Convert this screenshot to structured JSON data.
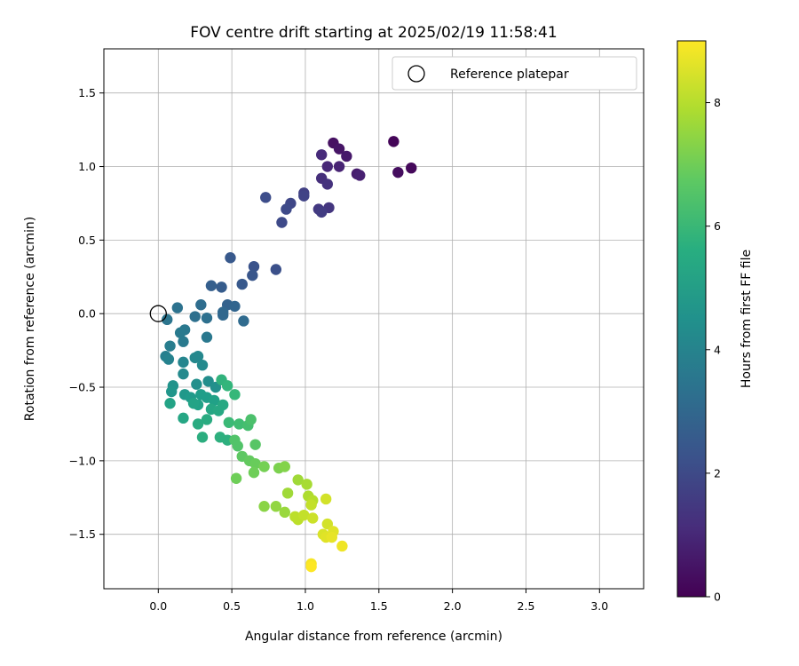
{
  "chart_data": {
    "type": "scatter",
    "title": "FOV centre drift starting at 2025/02/19 11:58:41",
    "xlabel": "Angular distance from reference (arcmin)",
    "ylabel": "Rotation from reference (arcmin)",
    "xlim": [
      -0.37,
      3.3
    ],
    "ylim": [
      -1.87,
      1.8
    ],
    "xticks": [
      0.0,
      0.5,
      1.0,
      1.5,
      2.0,
      2.5,
      3.0
    ],
    "xtick_labels": [
      "0.0",
      "0.5",
      "1.0",
      "1.5",
      "2.0",
      "2.5",
      "3.0"
    ],
    "yticks": [
      -1.5,
      -1.0,
      -0.5,
      0.0,
      0.5,
      1.0,
      1.5
    ],
    "ytick_labels": [
      "−1.5",
      "−1.0",
      "−0.5",
      "0.0",
      "0.5",
      "1.0",
      "1.5"
    ],
    "grid": true,
    "colormap": "viridis",
    "colorbar": {
      "label": "Hours from first FF file",
      "range": [
        0,
        9
      ],
      "ticks": [
        0,
        2,
        4,
        6,
        8
      ],
      "tick_labels": [
        "0",
        "2",
        "4",
        "6",
        "8"
      ]
    },
    "legend": {
      "position": "top-right",
      "entries": [
        {
          "label": "Reference platepar",
          "marker": "hollow-circle"
        }
      ]
    },
    "reference_point": {
      "x": 0.0,
      "y": 0.0
    },
    "points": [
      {
        "x": 1.6,
        "y": 1.17,
        "c": 0.1
      },
      {
        "x": 1.72,
        "y": 0.99,
        "c": 0.2
      },
      {
        "x": 1.63,
        "y": 0.96,
        "c": 0.3
      },
      {
        "x": 1.19,
        "y": 1.16,
        "c": 0.4
      },
      {
        "x": 1.23,
        "y": 1.12,
        "c": 0.5
      },
      {
        "x": 1.28,
        "y": 1.07,
        "c": 0.6
      },
      {
        "x": 1.35,
        "y": 0.95,
        "c": 0.7
      },
      {
        "x": 1.37,
        "y": 0.94,
        "c": 0.8
      },
      {
        "x": 1.23,
        "y": 1.0,
        "c": 0.9
      },
      {
        "x": 1.15,
        "y": 1.0,
        "c": 1.0
      },
      {
        "x": 1.11,
        "y": 1.08,
        "c": 1.1
      },
      {
        "x": 1.11,
        "y": 0.92,
        "c": 1.2
      },
      {
        "x": 1.15,
        "y": 0.88,
        "c": 1.3
      },
      {
        "x": 1.16,
        "y": 0.72,
        "c": 1.4
      },
      {
        "x": 1.09,
        "y": 0.71,
        "c": 1.5
      },
      {
        "x": 1.11,
        "y": 0.69,
        "c": 1.6
      },
      {
        "x": 0.99,
        "y": 0.82,
        "c": 1.7
      },
      {
        "x": 0.99,
        "y": 0.8,
        "c": 1.8
      },
      {
        "x": 0.9,
        "y": 0.75,
        "c": 1.9
      },
      {
        "x": 0.87,
        "y": 0.71,
        "c": 2.0
      },
      {
        "x": 0.84,
        "y": 0.62,
        "c": 2.0
      },
      {
        "x": 0.73,
        "y": 0.79,
        "c": 2.1
      },
      {
        "x": 0.8,
        "y": 0.3,
        "c": 2.2
      },
      {
        "x": 0.65,
        "y": 0.32,
        "c": 2.3
      },
      {
        "x": 0.64,
        "y": 0.26,
        "c": 2.4
      },
      {
        "x": 0.57,
        "y": 0.2,
        "c": 2.5
      },
      {
        "x": 0.49,
        "y": 0.38,
        "c": 2.5
      },
      {
        "x": 0.43,
        "y": 0.18,
        "c": 2.6
      },
      {
        "x": 0.36,
        "y": 0.19,
        "c": 2.7
      },
      {
        "x": 0.47,
        "y": 0.06,
        "c": 2.8
      },
      {
        "x": 0.52,
        "y": 0.05,
        "c": 2.9
      },
      {
        "x": 0.44,
        "y": 0.01,
        "c": 3.0
      },
      {
        "x": 0.44,
        "y": -0.01,
        "c": 3.0
      },
      {
        "x": 0.58,
        "y": -0.05,
        "c": 3.1
      },
      {
        "x": 0.29,
        "y": 0.06,
        "c": 3.2
      },
      {
        "x": 0.33,
        "y": -0.03,
        "c": 3.3
      },
      {
        "x": 0.25,
        "y": -0.02,
        "c": 3.3
      },
      {
        "x": 0.13,
        "y": 0.04,
        "c": 3.4
      },
      {
        "x": 0.06,
        "y": -0.04,
        "c": 3.5
      },
      {
        "x": 0.33,
        "y": -0.16,
        "c": 3.6
      },
      {
        "x": 0.18,
        "y": -0.11,
        "c": 3.6
      },
      {
        "x": 0.15,
        "y": -0.13,
        "c": 3.7
      },
      {
        "x": 0.17,
        "y": -0.19,
        "c": 3.7
      },
      {
        "x": 0.08,
        "y": -0.22,
        "c": 3.8
      },
      {
        "x": 0.05,
        "y": -0.29,
        "c": 3.9
      },
      {
        "x": 0.07,
        "y": -0.31,
        "c": 4.0
      },
      {
        "x": 0.17,
        "y": -0.33,
        "c": 4.1
      },
      {
        "x": 0.25,
        "y": -0.3,
        "c": 4.2
      },
      {
        "x": 0.27,
        "y": -0.29,
        "c": 4.2
      },
      {
        "x": 0.3,
        "y": -0.35,
        "c": 4.3
      },
      {
        "x": 0.17,
        "y": -0.41,
        "c": 4.3
      },
      {
        "x": 0.34,
        "y": -0.46,
        "c": 4.4
      },
      {
        "x": 0.26,
        "y": -0.48,
        "c": 4.5
      },
      {
        "x": 0.39,
        "y": -0.5,
        "c": 4.5
      },
      {
        "x": 0.1,
        "y": -0.49,
        "c": 4.6
      },
      {
        "x": 0.09,
        "y": -0.53,
        "c": 4.7
      },
      {
        "x": 0.18,
        "y": -0.55,
        "c": 4.8
      },
      {
        "x": 0.22,
        "y": -0.57,
        "c": 4.9
      },
      {
        "x": 0.29,
        "y": -0.55,
        "c": 5.0
      },
      {
        "x": 0.33,
        "y": -0.57,
        "c": 5.0
      },
      {
        "x": 0.38,
        "y": -0.59,
        "c": 5.1
      },
      {
        "x": 0.27,
        "y": -0.62,
        "c": 5.1
      },
      {
        "x": 0.08,
        "y": -0.61,
        "c": 5.2
      },
      {
        "x": 0.24,
        "y": -0.61,
        "c": 5.2
      },
      {
        "x": 0.17,
        "y": -0.71,
        "c": 5.3
      },
      {
        "x": 0.36,
        "y": -0.65,
        "c": 5.3
      },
      {
        "x": 0.41,
        "y": -0.66,
        "c": 5.4
      },
      {
        "x": 0.44,
        "y": -0.62,
        "c": 5.4
      },
      {
        "x": 0.33,
        "y": -0.72,
        "c": 5.5
      },
      {
        "x": 0.27,
        "y": -0.75,
        "c": 5.5
      },
      {
        "x": 0.3,
        "y": -0.84,
        "c": 5.6
      },
      {
        "x": 0.42,
        "y": -0.84,
        "c": 5.7
      },
      {
        "x": 0.47,
        "y": -0.86,
        "c": 5.7
      },
      {
        "x": 0.43,
        "y": -0.45,
        "c": 5.8
      },
      {
        "x": 0.47,
        "y": -0.49,
        "c": 5.9
      },
      {
        "x": 0.52,
        "y": -0.55,
        "c": 6.0
      },
      {
        "x": 0.48,
        "y": -0.74,
        "c": 6.1
      },
      {
        "x": 0.55,
        "y": -0.75,
        "c": 6.2
      },
      {
        "x": 0.61,
        "y": -0.76,
        "c": 6.3
      },
      {
        "x": 0.63,
        "y": -0.72,
        "c": 6.4
      },
      {
        "x": 0.52,
        "y": -0.86,
        "c": 6.5
      },
      {
        "x": 0.54,
        "y": -0.9,
        "c": 6.5
      },
      {
        "x": 0.66,
        "y": -0.89,
        "c": 6.6
      },
      {
        "x": 0.57,
        "y": -0.97,
        "c": 6.7
      },
      {
        "x": 0.62,
        "y": -1.0,
        "c": 6.8
      },
      {
        "x": 0.66,
        "y": -1.02,
        "c": 6.9
      },
      {
        "x": 0.65,
        "y": -1.08,
        "c": 7.0
      },
      {
        "x": 0.53,
        "y": -1.12,
        "c": 7.0
      },
      {
        "x": 0.72,
        "y": -1.04,
        "c": 7.1
      },
      {
        "x": 0.82,
        "y": -1.05,
        "c": 7.2
      },
      {
        "x": 0.86,
        "y": -1.04,
        "c": 7.3
      },
      {
        "x": 0.72,
        "y": -1.31,
        "c": 7.4
      },
      {
        "x": 0.8,
        "y": -1.31,
        "c": 7.5
      },
      {
        "x": 0.86,
        "y": -1.35,
        "c": 7.6
      },
      {
        "x": 0.88,
        "y": -1.22,
        "c": 7.7
      },
      {
        "x": 0.95,
        "y": -1.13,
        "c": 7.7
      },
      {
        "x": 1.01,
        "y": -1.16,
        "c": 7.8
      },
      {
        "x": 1.02,
        "y": -1.24,
        "c": 7.9
      },
      {
        "x": 1.05,
        "y": -1.27,
        "c": 8.0
      },
      {
        "x": 0.93,
        "y": -1.38,
        "c": 8.1
      },
      {
        "x": 0.95,
        "y": -1.4,
        "c": 8.1
      },
      {
        "x": 0.99,
        "y": -1.37,
        "c": 8.2
      },
      {
        "x": 1.04,
        "y": -1.3,
        "c": 8.2
      },
      {
        "x": 1.05,
        "y": -1.39,
        "c": 8.3
      },
      {
        "x": 1.14,
        "y": -1.26,
        "c": 8.4
      },
      {
        "x": 1.15,
        "y": -1.43,
        "c": 8.4
      },
      {
        "x": 1.12,
        "y": -1.5,
        "c": 8.5
      },
      {
        "x": 1.14,
        "y": -1.52,
        "c": 8.6
      },
      {
        "x": 1.19,
        "y": -1.48,
        "c": 8.6
      },
      {
        "x": 1.18,
        "y": -1.52,
        "c": 8.7
      },
      {
        "x": 1.25,
        "y": -1.58,
        "c": 8.8
      },
      {
        "x": 1.04,
        "y": -1.7,
        "c": 8.9
      },
      {
        "x": 1.04,
        "y": -1.72,
        "c": 9.0
      }
    ]
  }
}
